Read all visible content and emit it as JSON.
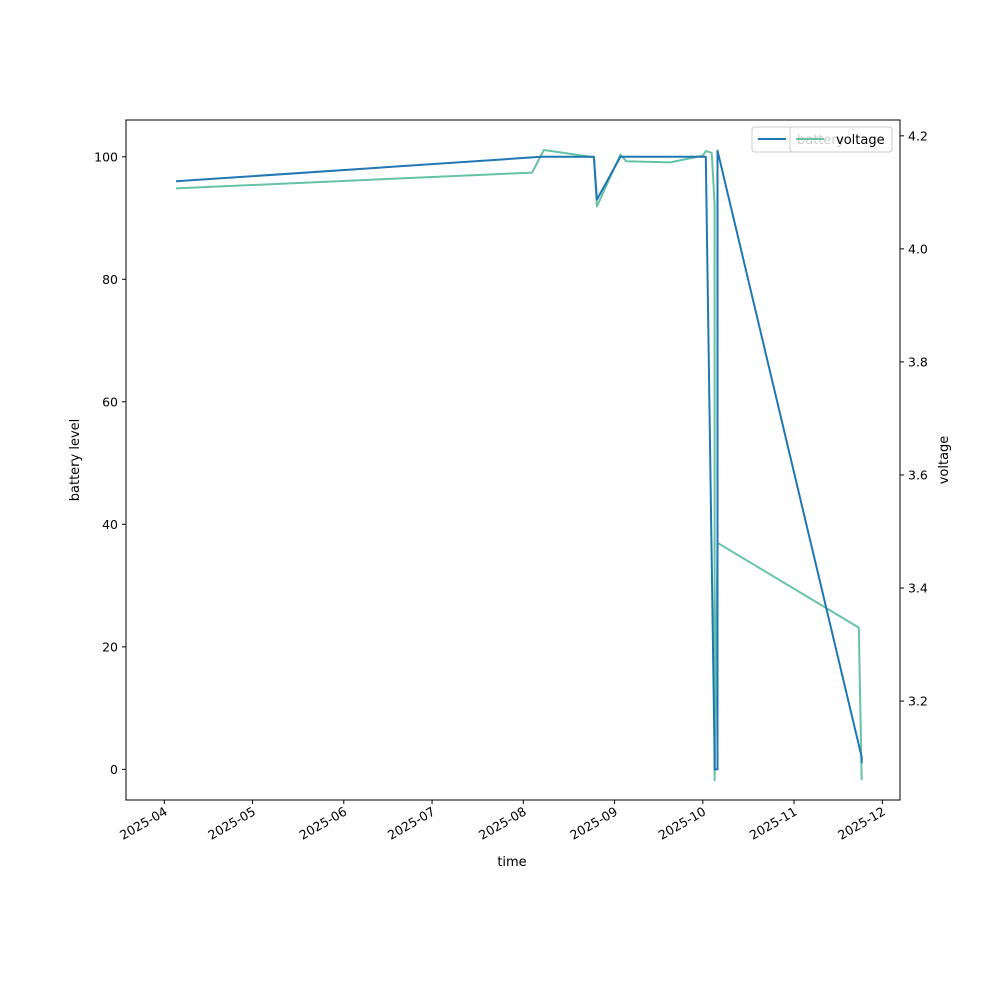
{
  "chart_data": {
    "type": "line",
    "xlabel": "time",
    "ylabel_left": "battery level",
    "ylabel_right": "voltage",
    "x_ticks": [
      "2025-04",
      "2025-05",
      "2025-06",
      "2025-07",
      "2025-08",
      "2025-09",
      "2025-10",
      "2025-11",
      "2025-12"
    ],
    "y_left_ticks": [
      "0",
      "20",
      "40",
      "60",
      "80",
      "100"
    ],
    "y_right_ticks": [
      "3.2",
      "3.4",
      "3.6",
      "3.8",
      "4.0",
      "4.2"
    ],
    "xlim": [
      "2025-03-19",
      "2025-12-07"
    ],
    "ylim_left": [
      -5,
      106
    ],
    "ylim_right": [
      3.025,
      4.228
    ],
    "legend_placement": "top-right",
    "series": [
      {
        "name": "battery",
        "axis": "left",
        "color": "#1f77b4",
        "x": [
          "2025-04-05",
          "2025-08-07",
          "2025-08-25",
          "2025-08-26",
          "2025-09-03",
          "2025-10-02",
          "2025-10-05",
          "2025-10-05",
          "2025-10-06",
          "2025-10-06",
          "2025-11-24",
          "2025-11-24"
        ],
        "y": [
          96,
          100,
          100,
          93,
          100,
          100,
          2,
          0,
          0,
          101,
          2,
          1
        ]
      },
      {
        "name": "voltage",
        "axis": "right",
        "color": "#66c2a5",
        "x": [
          "2025-04-05",
          "2025-08-04",
          "2025-08-08",
          "2025-08-25",
          "2025-08-26",
          "2025-09-03",
          "2025-09-05",
          "2025-09-20",
          "2025-10-01",
          "2025-10-02",
          "2025-10-04",
          "2025-10-05",
          "2025-10-05",
          "2025-10-06",
          "2025-11-23",
          "2025-11-24"
        ],
        "y": [
          4.107,
          4.135,
          4.175,
          4.162,
          4.075,
          4.167,
          4.155,
          4.153,
          4.165,
          4.173,
          4.17,
          4.08,
          3.06,
          3.48,
          3.33,
          3.06
        ]
      }
    ]
  }
}
